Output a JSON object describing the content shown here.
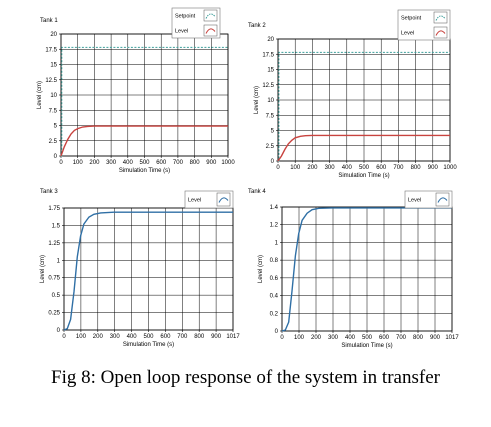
{
  "caption": "Fig 8: Open loop response of the system in transfer",
  "colors": {
    "setpoint": "#3c9e9a",
    "level_red": "#c8433f",
    "level_blue": "#2f6fa5",
    "grid": "#000000",
    "plot_bg": "#ffffff"
  },
  "chart_data": [
    {
      "type": "line",
      "title": "Tank 1",
      "xlabel": "Simulation Time (s)",
      "ylabel": "Level (cm)",
      "xlim": [
        0,
        1000
      ],
      "ylim": [
        0,
        20
      ],
      "xticks": [
        "0",
        "100",
        "200",
        "300",
        "400",
        "500",
        "600",
        "700",
        "800",
        "900",
        "1000"
      ],
      "yticks": [
        "0",
        "2.5",
        "5",
        "7.5",
        "10",
        "12.5",
        "15",
        "17.5",
        "20"
      ],
      "legend_position": "top-right",
      "series": [
        {
          "name": "Setpoint",
          "style": "dashed",
          "color": "#3c9e9a",
          "points": [
            [
              0,
              0
            ],
            [
              5,
              0
            ],
            [
              5,
              17.8
            ],
            [
              1000,
              17.8
            ]
          ]
        },
        {
          "name": "Level",
          "style": "solid",
          "color": "#c8433f",
          "points": [
            [
              0,
              0
            ],
            [
              20,
              1.5
            ],
            [
              40,
              2.7
            ],
            [
              60,
              3.6
            ],
            [
              80,
              4.2
            ],
            [
              100,
              4.5
            ],
            [
              130,
              4.75
            ],
            [
              160,
              4.85
            ],
            [
              200,
              4.9
            ],
            [
              300,
              4.9
            ],
            [
              1000,
              4.9
            ]
          ]
        }
      ]
    },
    {
      "type": "line",
      "title": "Tank 2",
      "xlabel": "Simulation Time (s)",
      "ylabel": "Level (cm)",
      "xlim": [
        0,
        1000
      ],
      "ylim": [
        0,
        20
      ],
      "xticks": [
        "0",
        "100",
        "200",
        "300",
        "400",
        "500",
        "600",
        "700",
        "800",
        "900",
        "1000"
      ],
      "yticks": [
        "0",
        "2.5",
        "5",
        "7.5",
        "10",
        "12.5",
        "15",
        "17.5",
        "20"
      ],
      "legend_position": "top-right",
      "series": [
        {
          "name": "Setpoint",
          "style": "dashed",
          "color": "#3c9e9a",
          "points": [
            [
              0,
              0
            ],
            [
              5,
              0
            ],
            [
              5,
              17.8
            ],
            [
              1000,
              17.8
            ]
          ]
        },
        {
          "name": "Level",
          "style": "solid",
          "color": "#c8433f",
          "points": [
            [
              0,
              0
            ],
            [
              20,
              0.8
            ],
            [
              40,
              1.9
            ],
            [
              60,
              2.8
            ],
            [
              80,
              3.4
            ],
            [
              100,
              3.8
            ],
            [
              130,
              4.05
            ],
            [
              160,
              4.15
            ],
            [
              200,
              4.2
            ],
            [
              300,
              4.2
            ],
            [
              1000,
              4.2
            ]
          ]
        }
      ]
    },
    {
      "type": "line",
      "title": "Tank 3",
      "xlabel": "Simulation Time (s)",
      "ylabel": "Level (cm)",
      "xlim": [
        0,
        1017
      ],
      "ylim": [
        0,
        1.75
      ],
      "xticks": [
        "0",
        "100",
        "200",
        "300",
        "400",
        "500",
        "600",
        "700",
        "800",
        "900",
        "1017"
      ],
      "yticks": [
        "0",
        "0.25",
        "0.5",
        "0.75",
        "1",
        "1.25",
        "1.5",
        "1.75"
      ],
      "legend_position": "top-right",
      "series": [
        {
          "name": "Level",
          "style": "solid",
          "color": "#2f6fa5",
          "points": [
            [
              0,
              0
            ],
            [
              20,
              0.02
            ],
            [
              40,
              0.15
            ],
            [
              60,
              0.55
            ],
            [
              80,
              1.05
            ],
            [
              100,
              1.35
            ],
            [
              120,
              1.52
            ],
            [
              150,
              1.62
            ],
            [
              180,
              1.66
            ],
            [
              220,
              1.68
            ],
            [
              300,
              1.69
            ],
            [
              1017,
              1.69
            ]
          ]
        }
      ]
    },
    {
      "type": "line",
      "title": "Tank 4",
      "xlabel": "Simulation Time (s)",
      "ylabel": "Level (cm)",
      "xlim": [
        0,
        1017
      ],
      "ylim": [
        0,
        1.4
      ],
      "xticks": [
        "0",
        "100",
        "200",
        "300",
        "400",
        "500",
        "600",
        "700",
        "800",
        "900",
        "1017"
      ],
      "yticks": [
        "0",
        "0.2",
        "0.4",
        "0.6",
        "0.8",
        "1",
        "1.2",
        "1.4"
      ],
      "legend_position": "top-right",
      "series": [
        {
          "name": "Level",
          "style": "solid",
          "color": "#2f6fa5",
          "points": [
            [
              0,
              0
            ],
            [
              20,
              0.01
            ],
            [
              40,
              0.1
            ],
            [
              60,
              0.45
            ],
            [
              80,
              0.85
            ],
            [
              100,
              1.1
            ],
            [
              120,
              1.25
            ],
            [
              150,
              1.33
            ],
            [
              180,
              1.37
            ],
            [
              220,
              1.385
            ],
            [
              300,
              1.39
            ],
            [
              1017,
              1.39
            ]
          ]
        }
      ]
    }
  ]
}
